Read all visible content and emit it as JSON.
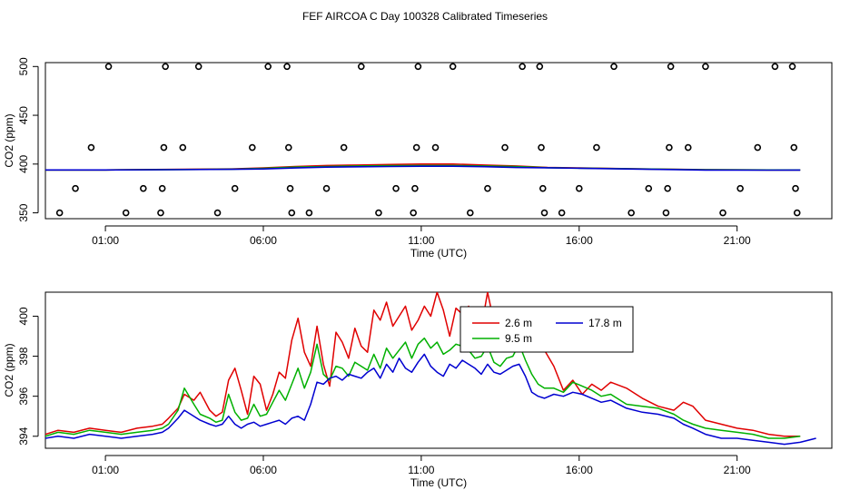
{
  "figure_title": "FEF AIRCOA C  Day 100328  Calibrated Timeseries",
  "chart_data": [
    {
      "type": "scatter",
      "xlabel": "Time (UTC)",
      "ylabel": "CO2 (ppm)",
      "x_unit": "hours UTC",
      "xlim": [
        -0.9,
        24.0
      ],
      "ylim": [
        344,
        504
      ],
      "xticks": [
        1,
        6,
        11,
        16,
        21
      ],
      "xtick_labels": [
        "01:00",
        "06:00",
        "11:00",
        "16:00",
        "21:00"
      ],
      "yticks": [
        350,
        400,
        450,
        500
      ],
      "ytick_labels": [
        "350",
        "400",
        "450",
        "500"
      ],
      "grid": false,
      "markers": [
        [
          -0.45,
          350
        ],
        [
          0.05,
          375
        ],
        [
          0.55,
          417
        ],
        [
          1.1,
          500
        ],
        [
          1.65,
          350
        ],
        [
          2.2,
          375
        ],
        [
          2.75,
          350
        ],
        [
          2.8,
          375
        ],
        [
          2.85,
          417
        ],
        [
          2.9,
          500
        ],
        [
          3.45,
          417
        ],
        [
          3.95,
          500
        ],
        [
          4.55,
          350
        ],
        [
          5.1,
          375
        ],
        [
          5.65,
          417
        ],
        [
          6.15,
          500
        ],
        [
          6.75,
          500
        ],
        [
          6.8,
          417
        ],
        [
          6.85,
          375
        ],
        [
          6.9,
          350
        ],
        [
          7.45,
          350
        ],
        [
          8.0,
          375
        ],
        [
          8.55,
          417
        ],
        [
          9.1,
          500
        ],
        [
          9.65,
          350
        ],
        [
          10.2,
          375
        ],
        [
          10.75,
          350
        ],
        [
          10.8,
          375
        ],
        [
          10.85,
          417
        ],
        [
          10.9,
          500
        ],
        [
          11.45,
          417
        ],
        [
          12.0,
          500
        ],
        [
          12.55,
          350
        ],
        [
          13.1,
          375
        ],
        [
          13.65,
          417
        ],
        [
          14.2,
          500
        ],
        [
          14.75,
          500
        ],
        [
          14.8,
          417
        ],
        [
          14.85,
          375
        ],
        [
          14.9,
          350
        ],
        [
          15.45,
          350
        ],
        [
          16.0,
          375
        ],
        [
          16.55,
          417
        ],
        [
          17.1,
          500
        ],
        [
          17.65,
          350
        ],
        [
          18.2,
          375
        ],
        [
          18.75,
          350
        ],
        [
          18.8,
          375
        ],
        [
          18.85,
          417
        ],
        [
          18.9,
          500
        ],
        [
          19.45,
          417
        ],
        [
          20.0,
          500
        ],
        [
          20.55,
          350
        ],
        [
          21.1,
          375
        ],
        [
          21.65,
          417
        ],
        [
          22.2,
          500
        ],
        [
          22.75,
          500
        ],
        [
          22.8,
          417
        ],
        [
          22.85,
          375
        ],
        [
          22.9,
          350
        ]
      ],
      "series": [
        {
          "color": "#e00000",
          "x": [
            -0.9,
            1,
            3,
            5,
            6,
            7,
            8,
            9,
            10,
            11,
            12,
            13,
            14,
            15,
            16,
            18,
            20,
            22,
            23.0
          ],
          "values": [
            394,
            394,
            394.5,
            395,
            396,
            397.5,
            398.5,
            399,
            399.5,
            400,
            400,
            399,
            398,
            396.5,
            396,
            395,
            394.2,
            394,
            394
          ]
        },
        {
          "color": "#00b000",
          "x": [
            -0.9,
            1,
            3,
            5,
            6,
            7,
            8,
            9,
            10,
            11,
            12,
            13,
            14,
            15,
            16,
            18,
            20,
            22,
            23.0
          ],
          "values": [
            394,
            394,
            394.3,
            394.8,
            395.5,
            396.8,
            397.5,
            398,
            398.3,
            398.5,
            398.5,
            398,
            397.5,
            396.3,
            395.8,
            395,
            394.1,
            394,
            394
          ]
        },
        {
          "color": "#0000d0",
          "x": [
            -0.9,
            1,
            3,
            5,
            6,
            7,
            8,
            9,
            10,
            11,
            12,
            13,
            14,
            15,
            16,
            18,
            20,
            22,
            23.0
          ],
          "values": [
            394,
            394,
            394.2,
            394.6,
            395,
            396,
            396.8,
            397.2,
            397.5,
            397.8,
            397.8,
            397.3,
            396.5,
            396.2,
            395.7,
            394.8,
            393.9,
            393.8,
            393.9
          ]
        }
      ]
    },
    {
      "type": "line",
      "xlabel": "Time (UTC)",
      "ylabel": "CO2 (ppm)",
      "x_unit": "hours UTC",
      "xlim": [
        -0.9,
        24.0
      ],
      "ylim": [
        393.4,
        401.2
      ],
      "xticks": [
        1,
        6,
        11,
        16,
        21
      ],
      "xtick_labels": [
        "01:00",
        "06:00",
        "11:00",
        "16:00",
        "21:00"
      ],
      "yticks": [
        394,
        396,
        398,
        400
      ],
      "ytick_labels": [
        "394",
        "396",
        "398",
        "400"
      ],
      "grid": false,
      "legend": {
        "placement": "top-right",
        "entries": [
          {
            "label": "2.6 m",
            "color": "#e00000"
          },
          {
            "label": "9.5 m",
            "color": "#00b000"
          },
          {
            "label": "17.8 m",
            "color": "#0000d0"
          }
        ]
      },
      "series": [
        {
          "name": "2.6 m",
          "color": "#e00000",
          "x": [
            -0.9,
            -0.5,
            0,
            0.5,
            1,
            1.5,
            2,
            2.5,
            2.8,
            3,
            3.3,
            3.5,
            3.8,
            4,
            4.3,
            4.5,
            4.7,
            4.9,
            5.1,
            5.3,
            5.5,
            5.7,
            5.9,
            6.1,
            6.3,
            6.5,
            6.7,
            6.9,
            7.1,
            7.3,
            7.5,
            7.7,
            7.9,
            8.1,
            8.3,
            8.5,
            8.7,
            8.9,
            9.1,
            9.3,
            9.5,
            9.7,
            9.9,
            10.1,
            10.3,
            10.5,
            10.7,
            10.9,
            11.1,
            11.3,
            11.5,
            11.7,
            11.9,
            12.1,
            12.3,
            12.5,
            12.7,
            12.9,
            13.1,
            13.3,
            13.5,
            13.7,
            13.9,
            14.1,
            14.3,
            14.5,
            14.7,
            14.9,
            15.2,
            15.5,
            15.8,
            16.1,
            16.4,
            16.7,
            17,
            17.5,
            18,
            18.5,
            19,
            19.3,
            19.6,
            20,
            20.5,
            21,
            21.5,
            22,
            22.5,
            23.0
          ],
          "values": [
            394.1,
            394.3,
            394.2,
            394.4,
            394.3,
            394.2,
            394.4,
            394.5,
            394.6,
            394.9,
            395.4,
            396.1,
            395.8,
            396.2,
            395.3,
            395.0,
            395.2,
            396.8,
            397.4,
            396.3,
            395.1,
            397.0,
            396.6,
            395.3,
            396.1,
            397.2,
            396.9,
            398.8,
            399.9,
            398.2,
            397.5,
            399.5,
            397.6,
            396.5,
            399.2,
            398.7,
            397.9,
            399.4,
            398.5,
            398.2,
            400.3,
            399.8,
            400.7,
            399.5,
            400.0,
            400.5,
            399.3,
            399.8,
            400.5,
            400.0,
            401.2,
            400.3,
            399.0,
            400.4,
            400.1,
            400.5,
            400.0,
            399.4,
            401.2,
            399.7,
            398.6,
            399.4,
            398.8,
            400.2,
            399.0,
            399.5,
            399.1,
            398.3,
            397.5,
            396.3,
            396.8,
            396.1,
            396.6,
            396.3,
            396.7,
            396.4,
            395.9,
            395.5,
            395.3,
            395.7,
            395.5,
            394.8,
            394.6,
            394.4,
            394.3,
            394.1,
            394.0,
            394.0
          ]
        },
        {
          "name": "9.5 m",
          "color": "#00b000",
          "x": [
            -0.9,
            -0.5,
            0,
            0.5,
            1,
            1.5,
            2,
            2.5,
            2.8,
            3,
            3.3,
            3.5,
            3.8,
            4,
            4.3,
            4.5,
            4.7,
            4.9,
            5.1,
            5.3,
            5.5,
            5.7,
            5.9,
            6.1,
            6.3,
            6.5,
            6.7,
            6.9,
            7.1,
            7.3,
            7.5,
            7.7,
            7.9,
            8.1,
            8.3,
            8.5,
            8.7,
            8.9,
            9.1,
            9.3,
            9.5,
            9.7,
            9.9,
            10.1,
            10.3,
            10.5,
            10.7,
            10.9,
            11.1,
            11.3,
            11.5,
            11.7,
            11.9,
            12.1,
            12.3,
            12.5,
            12.7,
            12.9,
            13.1,
            13.3,
            13.5,
            13.7,
            13.9,
            14.1,
            14.3,
            14.5,
            14.7,
            14.9,
            15.2,
            15.5,
            15.8,
            16.1,
            16.4,
            16.7,
            17,
            17.5,
            18,
            18.5,
            19,
            19.3,
            19.6,
            20,
            20.5,
            21,
            21.5,
            22,
            22.5,
            23.0
          ],
          "values": [
            394.0,
            394.2,
            394.1,
            394.3,
            394.2,
            394.1,
            394.2,
            394.3,
            394.4,
            394.6,
            395.3,
            396.4,
            395.6,
            395.1,
            394.9,
            394.7,
            394.8,
            396.1,
            395.2,
            394.8,
            394.9,
            395.6,
            395.0,
            395.1,
            395.7,
            396.3,
            395.8,
            396.6,
            397.4,
            396.4,
            397.2,
            398.6,
            397.1,
            396.8,
            397.5,
            397.4,
            397.0,
            397.7,
            397.5,
            397.3,
            398.1,
            397.4,
            398.4,
            397.9,
            398.3,
            398.7,
            397.9,
            398.6,
            398.9,
            398.4,
            398.7,
            398.1,
            398.3,
            398.6,
            398.5,
            398.3,
            397.9,
            398.0,
            398.5,
            397.7,
            397.5,
            397.9,
            398.0,
            398.6,
            397.8,
            397.1,
            396.6,
            396.4,
            396.4,
            396.2,
            396.7,
            396.5,
            396.3,
            396.0,
            396.1,
            395.6,
            395.5,
            395.4,
            395.1,
            394.8,
            394.6,
            394.4,
            394.3,
            394.2,
            394.1,
            393.9,
            393.9,
            394.0
          ]
        },
        {
          "name": "17.8 m",
          "color": "#0000d0",
          "x": [
            -0.9,
            -0.5,
            0,
            0.5,
            1,
            1.5,
            2,
            2.5,
            2.8,
            3,
            3.3,
            3.5,
            3.8,
            4,
            4.3,
            4.5,
            4.7,
            4.9,
            5.1,
            5.3,
            5.5,
            5.7,
            5.9,
            6.1,
            6.3,
            6.5,
            6.7,
            6.9,
            7.1,
            7.3,
            7.5,
            7.7,
            7.9,
            8.1,
            8.3,
            8.5,
            8.7,
            8.9,
            9.1,
            9.3,
            9.5,
            9.7,
            9.9,
            10.1,
            10.3,
            10.5,
            10.7,
            10.9,
            11.1,
            11.3,
            11.5,
            11.7,
            11.9,
            12.1,
            12.3,
            12.5,
            12.7,
            12.9,
            13.1,
            13.3,
            13.5,
            13.7,
            13.9,
            14.1,
            14.3,
            14.5,
            14.7,
            14.9,
            15.2,
            15.5,
            15.8,
            16.1,
            16.4,
            16.7,
            17,
            17.5,
            18,
            18.5,
            19,
            19.3,
            19.6,
            20,
            20.5,
            21,
            21.5,
            22,
            22.5,
            23.0,
            23.5
          ],
          "values": [
            393.9,
            394.0,
            393.9,
            394.1,
            394.0,
            393.9,
            394.0,
            394.1,
            394.2,
            394.4,
            394.9,
            395.3,
            395.0,
            394.8,
            394.6,
            394.5,
            394.6,
            395.0,
            394.6,
            394.4,
            394.6,
            394.7,
            394.5,
            394.6,
            394.7,
            394.8,
            394.6,
            394.9,
            395.0,
            394.8,
            395.6,
            396.7,
            396.6,
            396.9,
            397.0,
            396.8,
            397.1,
            397.0,
            396.9,
            397.2,
            397.4,
            396.9,
            397.6,
            397.2,
            397.9,
            397.4,
            397.2,
            397.7,
            398.1,
            397.5,
            397.2,
            397.0,
            397.6,
            397.4,
            397.8,
            397.6,
            397.4,
            397.1,
            397.6,
            397.2,
            397.1,
            397.3,
            397.5,
            397.6,
            397.0,
            396.2,
            396.0,
            395.9,
            396.1,
            396.0,
            396.2,
            396.1,
            395.9,
            395.7,
            395.8,
            395.4,
            395.2,
            395.1,
            394.9,
            394.6,
            394.4,
            394.1,
            393.9,
            393.9,
            393.8,
            393.7,
            393.6,
            393.7,
            393.9
          ]
        }
      ]
    }
  ]
}
